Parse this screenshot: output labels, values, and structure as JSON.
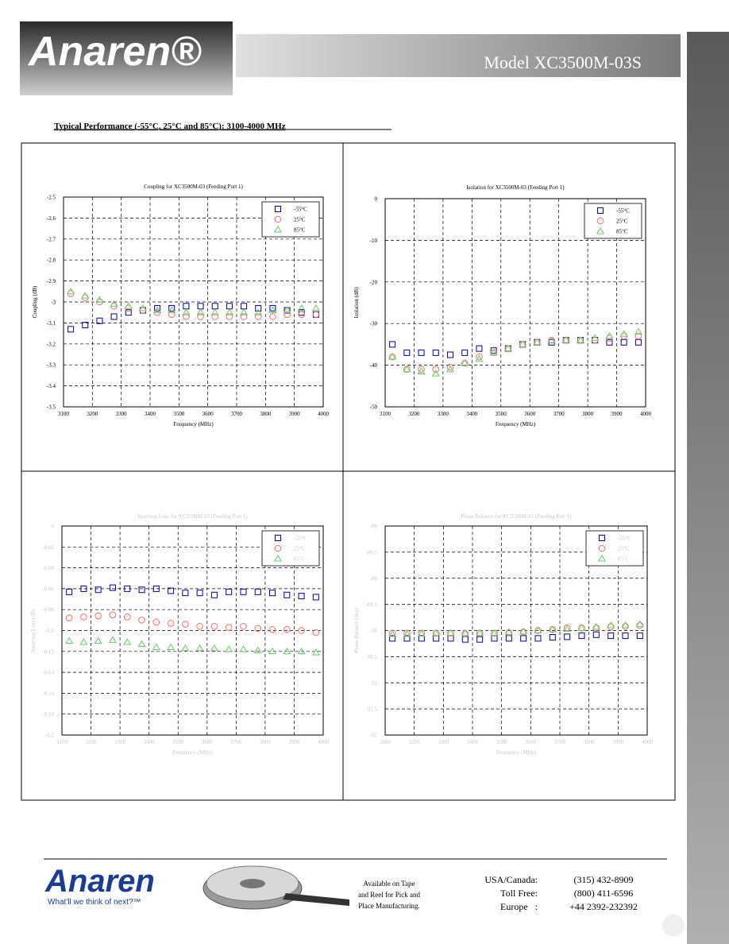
{
  "header": {
    "logo": "Anaren®",
    "model": "Model XC3500M-03S",
    "caption": "Typical Performance (-55°C, 25°C and 85°C): 3100-4000 MHz"
  },
  "chart_data": [
    {
      "type": "scatter",
      "title": "Coupling for XC3500M-03 (Feeding Port 1)",
      "x_label": "Frequency (MHz)",
      "y_label": "Coupling (dB)",
      "x": [
        3125,
        3175,
        3225,
        3275,
        3325,
        3375,
        3425,
        3475,
        3525,
        3575,
        3625,
        3675,
        3725,
        3775,
        3825,
        3875,
        3925,
        3975
      ],
      "xlim": [
        3100,
        4000
      ],
      "xticks": [
        3100,
        3200,
        3300,
        3400,
        3500,
        3600,
        3700,
        3800,
        3900,
        4000
      ],
      "ylim": [
        -3.5,
        -2.5
      ],
      "yticks": [
        -2.5,
        -2.6,
        -2.7,
        -2.8,
        -2.9,
        -3,
        -3.1,
        -3.2,
        -3.3,
        -3.4,
        -3.5
      ],
      "grid": true,
      "legend": "upper right",
      "series": [
        {
          "name": "-55°C",
          "color": "#0000aa",
          "marker": "square",
          "values": [
            -3.13,
            -3.11,
            -3.09,
            -3.07,
            -3.05,
            -3.04,
            -3.03,
            -3.03,
            -3.02,
            -3.02,
            -3.02,
            -3.02,
            -3.02,
            -3.03,
            -3.03,
            -3.04,
            -3.05,
            -3.06
          ]
        },
        {
          "name": "25°C",
          "color": "#ff6a6a",
          "marker": "circle",
          "values": [
            -2.96,
            -2.98,
            -3.0,
            -3.02,
            -3.03,
            -3.04,
            -3.05,
            -3.06,
            -3.07,
            -3.07,
            -3.07,
            -3.07,
            -3.07,
            -3.07,
            -3.07,
            -3.06,
            -3.06,
            -3.06
          ]
        },
        {
          "name": "85°C",
          "color": "#66cc66",
          "marker": "triangle",
          "values": [
            -2.95,
            -2.97,
            -2.99,
            -3.01,
            -3.02,
            -3.03,
            -3.04,
            -3.04,
            -3.05,
            -3.05,
            -3.05,
            -3.05,
            -3.05,
            -3.05,
            -3.04,
            -3.04,
            -3.03,
            -3.03
          ]
        }
      ]
    },
    {
      "type": "scatter",
      "title": "Isolation for XC3500M-03 (Feeding Port 1)",
      "x_label": "Frequency (MHz)",
      "y_label": "Isolation (dB)",
      "x": [
        3125,
        3175,
        3225,
        3275,
        3325,
        3375,
        3425,
        3475,
        3525,
        3575,
        3625,
        3675,
        3725,
        3775,
        3825,
        3875,
        3925,
        3975
      ],
      "xlim": [
        3100,
        4000
      ],
      "xticks": [
        3100,
        3200,
        3300,
        3400,
        3500,
        3600,
        3700,
        3800,
        3900,
        4000
      ],
      "ylim": [
        -50,
        0
      ],
      "yticks": [
        0,
        -10,
        -20,
        -30,
        -40,
        -50
      ],
      "grid": true,
      "legend": "upper right",
      "series": [
        {
          "name": "-55°C",
          "color": "#0000aa",
          "marker": "square",
          "values": [
            -35,
            -37,
            -37,
            -37,
            -37.5,
            -37,
            -36,
            -36.5,
            -36,
            -35,
            -34.5,
            -34.5,
            -34,
            -34,
            -34,
            -34.5,
            -34.5,
            -34.5
          ]
        },
        {
          "name": "25°C",
          "color": "#ff6a6a",
          "marker": "circle",
          "values": [
            -38,
            -41,
            -41,
            -41,
            -40.5,
            -39.5,
            -38,
            -37,
            -36,
            -35,
            -34.5,
            -34,
            -34,
            -34,
            -34,
            -33.5,
            -33,
            -33
          ]
        },
        {
          "name": "85°C",
          "color": "#66cc66",
          "marker": "triangle",
          "values": [
            -38,
            -41,
            -41.5,
            -42,
            -41,
            -39.5,
            -38.5,
            -37,
            -36,
            -35,
            -34.5,
            -34,
            -34,
            -34,
            -33.5,
            -33,
            -32.5,
            -32
          ]
        }
      ]
    },
    {
      "type": "scatter",
      "title": "Insertion Loss for XC3500M-03 (Feeding Port 1)",
      "x_label": "Frequency (MHz)",
      "y_label": "Insertion Loss (dB)",
      "x": [
        3125,
        3175,
        3225,
        3275,
        3325,
        3375,
        3425,
        3475,
        3525,
        3575,
        3625,
        3675,
        3725,
        3775,
        3825,
        3875,
        3925,
        3975
      ],
      "xlim": [
        3100,
        4000
      ],
      "xticks": [
        3100,
        3200,
        3300,
        3400,
        3500,
        3600,
        3700,
        3800,
        3900,
        4000
      ],
      "ylim": [
        -0.2,
        0
      ],
      "yticks": [
        0,
        -0.02,
        -0.04,
        -0.06,
        -0.08,
        -0.1,
        -0.12,
        -0.14,
        -0.16,
        -0.18,
        -0.2
      ],
      "grid": true,
      "legend": "upper right",
      "series": [
        {
          "name": "-55°C",
          "color": "#0000aa",
          "marker": "square",
          "values": [
            -0.063,
            -0.06,
            -0.061,
            -0.059,
            -0.06,
            -0.061,
            -0.06,
            -0.062,
            -0.064,
            -0.064,
            -0.066,
            -0.063,
            -0.063,
            -0.063,
            -0.064,
            -0.066,
            -0.067,
            -0.068
          ]
        },
        {
          "name": "25°C",
          "color": "#ff6a6a",
          "marker": "circle",
          "values": [
            -0.088,
            -0.087,
            -0.086,
            -0.085,
            -0.087,
            -0.09,
            -0.092,
            -0.093,
            -0.094,
            -0.096,
            -0.096,
            -0.097,
            -0.096,
            -0.098,
            -0.099,
            -0.099,
            -0.1,
            -0.102
          ]
        },
        {
          "name": "85°C",
          "color": "#66cc66",
          "marker": "triangle",
          "values": [
            -0.11,
            -0.111,
            -0.11,
            -0.109,
            -0.111,
            -0.113,
            -0.116,
            -0.116,
            -0.117,
            -0.117,
            -0.117,
            -0.118,
            -0.118,
            -0.119,
            -0.12,
            -0.12,
            -0.12,
            -0.121
          ]
        }
      ]
    },
    {
      "type": "scatter",
      "title": "Phase Balance for XC3500M-03 (Feeding Port 1)",
      "x_label": "Frequency (MHz)",
      "y_label": "Phase Balance (deg)",
      "x": [
        3125,
        3175,
        3225,
        3275,
        3325,
        3375,
        3425,
        3475,
        3525,
        3575,
        3625,
        3675,
        3725,
        3775,
        3825,
        3875,
        3925,
        3975
      ],
      "xlim": [
        3100,
        4000
      ],
      "xticks": [
        3100,
        3200,
        3300,
        3400,
        3500,
        3600,
        3700,
        3800,
        3900,
        4000
      ],
      "ylim": [
        -92,
        -88
      ],
      "yticks": [
        -88,
        -88.5,
        -89,
        -89.5,
        -90,
        -90.5,
        -91,
        -91.5,
        -92
      ],
      "grid": true,
      "legend": "upper right",
      "series": [
        {
          "name": "-55°C",
          "color": "#0000aa",
          "marker": "square",
          "values": [
            -90.15,
            -90.15,
            -90.15,
            -90.15,
            -90.15,
            -90.17,
            -90.17,
            -90.15,
            -90.15,
            -90.15,
            -90.15,
            -90.13,
            -90.12,
            -90.1,
            -90.08,
            -90.1,
            -90.1,
            -90.1
          ]
        },
        {
          "name": "25°C",
          "color": "#ff6a6a",
          "marker": "circle",
          "values": [
            -90.05,
            -90.05,
            -90.05,
            -90.05,
            -90.05,
            -90.06,
            -90.05,
            -90.05,
            -90.04,
            -90.03,
            -90.0,
            -89.98,
            -89.95,
            -89.95,
            -89.95,
            -89.93,
            -89.92,
            -89.9
          ]
        },
        {
          "name": "85°C",
          "color": "#66cc66",
          "marker": "triangle",
          "values": [
            -90.07,
            -90.07,
            -90.06,
            -90.05,
            -90.05,
            -90.05,
            -90.05,
            -90.05,
            -90.03,
            -90.02,
            -90.0,
            -89.98,
            -89.97,
            -89.95,
            -89.93,
            -89.9,
            -89.9,
            -89.88
          ]
        }
      ]
    }
  ],
  "footer": {
    "logo": "Anaren",
    "tagline": "What'll we think of next?™",
    "reel_lines": [
      "Available on Tape",
      "and Reel for Pick and",
      "Place Manufacturing."
    ],
    "contacts": [
      [
        "USA/Canada:",
        "(315) 432-8909"
      ],
      [
        "Toll Free:",
        "(800) 411-6596"
      ],
      [
        "Europe   :",
        "+44 2392-232392"
      ]
    ]
  }
}
